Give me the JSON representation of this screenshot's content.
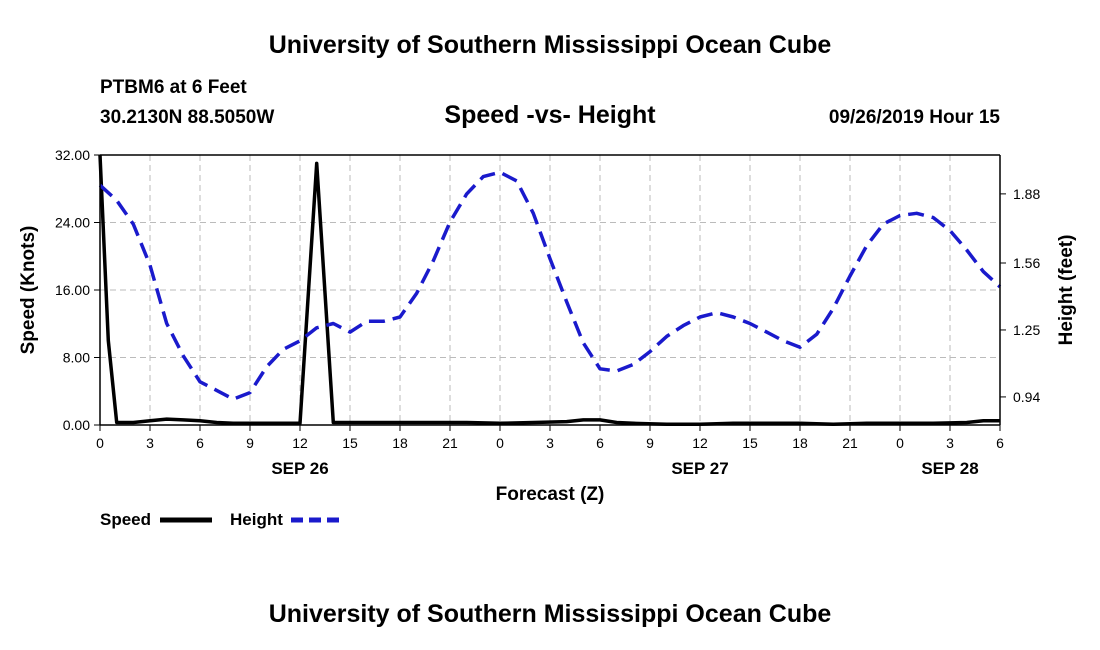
{
  "header": {
    "title": "University of Southern Mississippi Ocean Cube",
    "station": "PTBM6 at 6 Feet",
    "coords": "30.2130N 88.5050W",
    "datetime": "09/26/2019 Hour 15"
  },
  "footer": {
    "title": "University of Southern Mississippi Ocean Cube"
  },
  "chart_data": {
    "type": "line",
    "title": "Speed -vs- Height",
    "xlabel": "Forecast (Z)",
    "ylabel_left": "Speed (Knots)",
    "ylabel_right": "Height (feet)",
    "xlim": [
      0,
      54
    ],
    "ylim_left": [
      0,
      32
    ],
    "ylim_right": [
      0.81,
      2.06
    ],
    "grid": true,
    "x_tick_positions": [
      0,
      3,
      6,
      9,
      12,
      15,
      18,
      21,
      24,
      27,
      30,
      33,
      36,
      39,
      42,
      45,
      48,
      51,
      54
    ],
    "x_tick_labels": [
      "0",
      "3",
      "6",
      "9",
      "12",
      "15",
      "18",
      "21",
      "0",
      "3",
      "6",
      "9",
      "12",
      "15",
      "18",
      "21",
      "0",
      "3",
      "6"
    ],
    "date_labels": [
      {
        "x": 12,
        "text": "SEP 26"
      },
      {
        "x": 36,
        "text": "SEP 27"
      },
      {
        "x": 51,
        "text": "SEP 28"
      }
    ],
    "y_left_ticks": [
      "0.00",
      "8.00",
      "16.00",
      "24.00",
      "32.00"
    ],
    "y_right_ticks": [
      "0.94",
      "1.25",
      "1.56",
      "1.88"
    ],
    "series": [
      {
        "name": "Speed",
        "axis": "left",
        "color": "#000000",
        "style": "solid",
        "x": [
          0,
          0.5,
          1,
          2,
          3,
          4,
          5,
          6,
          7,
          8,
          9,
          10,
          11,
          12,
          13,
          14,
          15,
          16,
          18,
          20,
          22,
          24,
          26,
          28,
          29,
          30,
          31,
          32,
          34,
          36,
          38,
          40,
          42,
          44,
          46,
          48,
          50,
          52,
          53,
          54
        ],
        "values": [
          32,
          10,
          0.3,
          0.3,
          0.5,
          0.7,
          0.6,
          0.5,
          0.3,
          0.2,
          0.2,
          0.2,
          0.2,
          0.2,
          31,
          0.3,
          0.3,
          0.3,
          0.3,
          0.3,
          0.3,
          0.2,
          0.3,
          0.4,
          0.6,
          0.6,
          0.3,
          0.2,
          0.1,
          0.1,
          0.2,
          0.2,
          0.2,
          0.1,
          0.2,
          0.2,
          0.2,
          0.3,
          0.5,
          0.5
        ]
      },
      {
        "name": "Height",
        "axis": "right",
        "color": "#1a1acc",
        "style": "dashed",
        "x": [
          0,
          1,
          2,
          3,
          4,
          5,
          6,
          7,
          8,
          9,
          10,
          11,
          12,
          13,
          14,
          15,
          16,
          17,
          18,
          19,
          20,
          21,
          22,
          23,
          24,
          25,
          26,
          27,
          28,
          29,
          30,
          31,
          32,
          33,
          34,
          35,
          36,
          37,
          38,
          39,
          40,
          41,
          42,
          43,
          44,
          45,
          46,
          47,
          48,
          49,
          50,
          51,
          52,
          53,
          54
        ],
        "values": [
          1.92,
          1.85,
          1.74,
          1.55,
          1.28,
          1.13,
          1.01,
          0.97,
          0.93,
          0.96,
          1.08,
          1.16,
          1.2,
          1.26,
          1.28,
          1.24,
          1.29,
          1.29,
          1.31,
          1.42,
          1.57,
          1.75,
          1.88,
          1.96,
          1.98,
          1.94,
          1.79,
          1.58,
          1.38,
          1.19,
          1.07,
          1.06,
          1.09,
          1.15,
          1.22,
          1.27,
          1.31,
          1.33,
          1.31,
          1.28,
          1.24,
          1.2,
          1.17,
          1.23,
          1.35,
          1.5,
          1.64,
          1.74,
          1.78,
          1.79,
          1.77,
          1.71,
          1.62,
          1.52,
          1.45
        ]
      }
    ]
  }
}
